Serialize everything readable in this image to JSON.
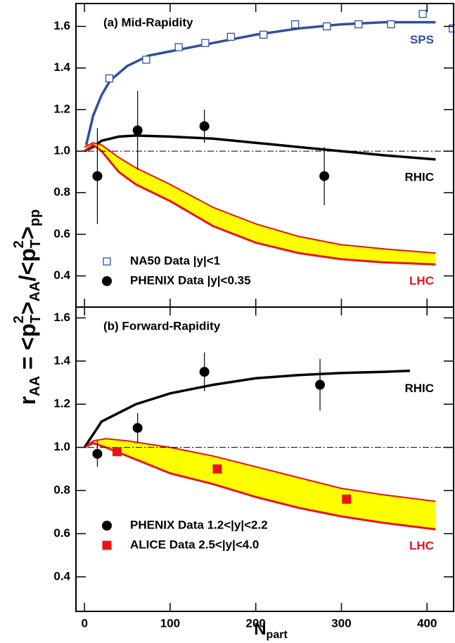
{
  "chart_data": [
    {
      "type": "line",
      "title": "(a) Mid-Rapidity",
      "y_label": [
        "r",
        "AA",
        " = <p",
        "2",
        "T",
        ">",
        "AA",
        "/<p",
        "2",
        "T",
        ">",
        "pp"
      ],
      "xlim": [
        -10,
        431
      ],
      "xticks": [
        0,
        100,
        200,
        300,
        400
      ],
      "ylim": [
        0.25,
        1.71
      ],
      "yticks": [
        0.4,
        0.6,
        0.8,
        {
          "value": 1,
          "label": "1.0"
        },
        1.2,
        1.4,
        1.6
      ],
      "reference_line": 1,
      "legend": "lower left",
      "series": [
        {
          "name": "SPS",
          "type": "line",
          "color": "#2e4fa3",
          "x": [
            2,
            10,
            20,
            30,
            50,
            75,
            100,
            150,
            200,
            250,
            300,
            350,
            410
          ],
          "values": [
            1.03,
            1.17,
            1.27,
            1.34,
            1.41,
            1.46,
            1.48,
            1.52,
            1.56,
            1.59,
            1.61,
            1.62,
            1.62
          ]
        },
        {
          "name": "RHIC",
          "type": "line",
          "color": "#000000",
          "x": [
            0,
            10,
            20,
            40,
            60,
            100,
            150,
            200,
            250,
            300,
            350,
            410
          ],
          "values": [
            1.0,
            1.02,
            1.05,
            1.07,
            1.075,
            1.07,
            1.06,
            1.04,
            1.02,
            1.0,
            0.98,
            0.96
          ]
        },
        {
          "name": "LHC",
          "type": "band",
          "color": "#e8141c",
          "fill": "#ffff00",
          "x": [
            0,
            10,
            20,
            40,
            60,
            100,
            150,
            200,
            250,
            300,
            350,
            410
          ],
          "values": [
            1.02,
            1.04,
            1.03,
            0.97,
            0.92,
            0.84,
            0.73,
            0.65,
            0.59,
            0.55,
            0.53,
            0.51
          ],
          "lower": [
            1.0,
            1.03,
            1.0,
            0.9,
            0.84,
            0.76,
            0.64,
            0.56,
            0.51,
            0.48,
            0.465,
            0.455
          ]
        },
        {
          "name": "NA50 Data |y|<1",
          "type": "scatter",
          "marker": "open-square",
          "color": "#2e4fa3",
          "x": [
            29,
            72,
            110,
            141,
            171,
            209,
            246,
            283,
            320,
            358,
            395,
            430
          ],
          "values": [
            1.35,
            1.44,
            1.5,
            1.52,
            1.55,
            1.56,
            1.61,
            1.6,
            1.61,
            1.61,
            1.66,
            1.59
          ]
        },
        {
          "name": "PHENIX Data |y|<0.35",
          "type": "scatter",
          "marker": "circle",
          "color": "#000000",
          "x": [
            15,
            62,
            140,
            280
          ],
          "values": [
            0.88,
            1.1,
            1.12,
            0.88
          ],
          "errors": [
            0.23,
            0.19,
            0.08,
            0.14
          ]
        }
      ]
    },
    {
      "type": "line",
      "title": "(b) Forward-Rapidity",
      "x_label": [
        "N",
        "part"
      ],
      "xlim": [
        -10,
        431
      ],
      "xticks": [
        0,
        100,
        200,
        300,
        400
      ],
      "ylim": [
        0.24,
        1.65
      ],
      "yticks": [
        0.4,
        0.6,
        0.8,
        {
          "value": 1,
          "label": "1.0"
        },
        1.2,
        1.4,
        1.6
      ],
      "reference_line": 1,
      "legend": "lower left",
      "series": [
        {
          "name": "RHIC",
          "type": "line",
          "color": "#000000",
          "x": [
            0,
            10,
            20,
            40,
            60,
            100,
            150,
            200,
            250,
            300,
            350,
            380
          ],
          "values": [
            1.0,
            1.06,
            1.12,
            1.16,
            1.2,
            1.25,
            1.29,
            1.32,
            1.335,
            1.345,
            1.35,
            1.355
          ]
        },
        {
          "name": "LHC",
          "type": "band",
          "color": "#e8141c",
          "fill": "#ffff00",
          "x": [
            0,
            10,
            25,
            50,
            100,
            150,
            200,
            250,
            300,
            350,
            410
          ],
          "values": [
            1.0,
            1.03,
            1.04,
            1.03,
            1.0,
            0.96,
            0.91,
            0.86,
            0.81,
            0.78,
            0.75
          ],
          "lower": [
            1.0,
            1.02,
            1.0,
            0.96,
            0.88,
            0.83,
            0.77,
            0.72,
            0.68,
            0.65,
            0.62
          ]
        },
        {
          "name": "PHENIX Data 1.2<|y|<2.2",
          "type": "scatter",
          "marker": "circle",
          "color": "#000000",
          "x": [
            15,
            62,
            140,
            275
          ],
          "values": [
            0.97,
            1.09,
            1.35,
            1.29
          ],
          "errors": [
            0.06,
            0.07,
            0.09,
            0.12
          ]
        },
        {
          "name": "ALICE Data 2.5<|y|<4.0",
          "type": "scatter",
          "marker": "filled-square",
          "color": "#e8141c",
          "x": [
            38,
            155,
            306
          ],
          "values": [
            0.98,
            0.9,
            0.76
          ]
        }
      ]
    }
  ]
}
